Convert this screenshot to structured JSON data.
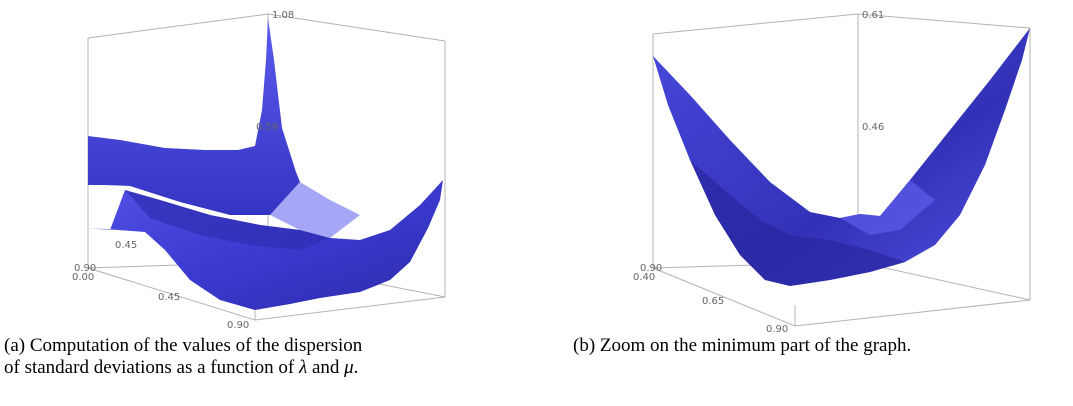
{
  "chart_data": [
    {
      "type": "surface",
      "zlim": [
        0.1,
        1.08
      ],
      "axis_ticks": {
        "z": [
          "1.08",
          "0.59"
        ],
        "lambda": [
          "0.00",
          "0.45",
          "0.90"
        ],
        "mu": [
          "0.90",
          "0.45"
        ]
      },
      "caption_parts": [
        "(a) Computation of the values of the dispersion",
        "of standard deviations as a function of ",
        "λ",
        " and ",
        "μ",
        "."
      ],
      "surface_color": "#4a4ae0"
    },
    {
      "type": "surface",
      "zlim": [
        0.31,
        0.61
      ],
      "axis_ticks": {
        "z": [
          "0.61",
          "0.46"
        ],
        "lambda": [
          "0.40",
          "0.65",
          "0.90"
        ],
        "mu": [
          "0.90"
        ]
      },
      "caption": "(b) Zoom on the minimum part of the graph.",
      "surface_color": "#4a4ae0"
    }
  ]
}
